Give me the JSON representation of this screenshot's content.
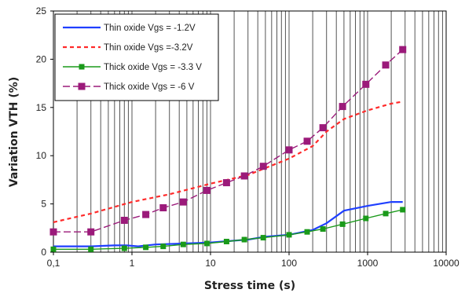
{
  "chart_data": {
    "type": "line",
    "xlabel": "Stress time (s)",
    "ylabel": "Variation VTH (%)",
    "x_scale": "log",
    "xlim": [
      0.1,
      10000
    ],
    "ylim": [
      0,
      25
    ],
    "x_ticks": [
      "0,1",
      "1",
      "10",
      "100",
      "1000",
      "10000"
    ],
    "y_ticks": [
      "0",
      "5",
      "10",
      "15",
      "20",
      "25"
    ],
    "grid": "vertical log grid",
    "legend_position": "top-left",
    "series": [
      {
        "name": "Thin oxide Vgs = -1.2V",
        "style": "solid",
        "color": "#1f3fff",
        "marker": "none",
        "x": [
          0.1,
          0.3,
          0.6,
          0.85,
          1.2,
          2,
          5,
          10,
          30,
          50,
          100,
          200,
          300,
          500,
          1000,
          2000,
          2800
        ],
        "y": [
          0.6,
          0.6,
          0.7,
          0.7,
          0.6,
          0.8,
          0.9,
          1.0,
          1.3,
          1.6,
          1.8,
          2.3,
          3.0,
          4.3,
          4.8,
          5.2,
          5.2
        ]
      },
      {
        "name": "Thin oxide Vgs =-3.2V",
        "style": "dashed",
        "color": "#ff2a2a",
        "marker": "none",
        "x": [
          0.1,
          0.3,
          1,
          3,
          10,
          30,
          100,
          200,
          300,
          500,
          1000,
          2000,
          2800
        ],
        "y": [
          3.1,
          4.0,
          5.2,
          6.0,
          7.1,
          8.0,
          9.7,
          11.0,
          12.5,
          13.8,
          14.7,
          15.4,
          15.6
        ]
      },
      {
        "name": "Thick oxide Vgs = -3.3 V",
        "style": "solid",
        "color": "#1a9a1a",
        "marker": "square",
        "x": [
          0.1,
          0.3,
          0.8,
          1.5,
          2.5,
          4.5,
          9,
          16,
          27,
          47,
          100,
          170,
          270,
          480,
          950,
          1700,
          2800
        ],
        "y": [
          0.3,
          0.3,
          0.4,
          0.5,
          0.6,
          0.8,
          0.9,
          1.1,
          1.3,
          1.5,
          1.8,
          2.1,
          2.4,
          2.9,
          3.5,
          4.0,
          4.4
        ]
      },
      {
        "name": "Thick oxide Vgs = -6 V",
        "style": "dashed",
        "color": "#9b1a7a",
        "marker": "square",
        "x": [
          0.1,
          0.3,
          0.8,
          1.5,
          2.5,
          4.5,
          9,
          16,
          27,
          47,
          100,
          170,
          270,
          480,
          950,
          1700,
          2800
        ],
        "y": [
          2.1,
          2.1,
          3.3,
          3.9,
          4.6,
          5.2,
          6.4,
          7.2,
          7.9,
          8.9,
          10.6,
          11.5,
          12.9,
          15.1,
          17.4,
          19.4,
          21.0
        ]
      }
    ]
  }
}
